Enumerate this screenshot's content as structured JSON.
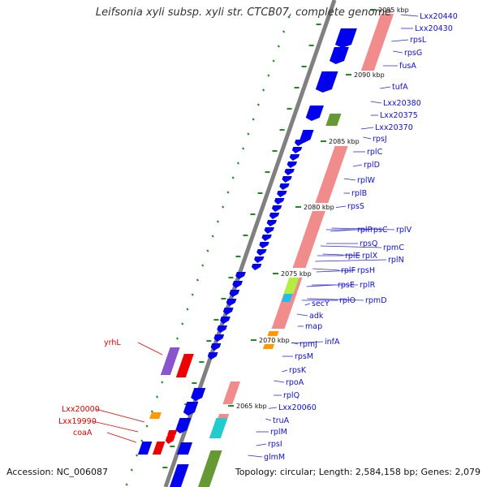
{
  "title": "Leifsonia xyli subsp. xyli str. CTCB07, complete genome",
  "accession": "Accession: NC_006087",
  "topology": "Topology: circular; Length: 2,584,158 bp; Genes: 2,079",
  "colors": {
    "backbone": "#7f7f7f",
    "cds_forward": "#0000ee",
    "cds_reverse_label": "#dd0000",
    "rrna_gene": "#f08c8c",
    "gc_tick": "#1f8c1f"
  },
  "ruler": [
    "2065 kbp",
    "2070 kbp",
    "2075 kbp",
    "2080 kbp",
    "2085 kbp",
    "2090 kbp",
    "2095 kbp"
  ],
  "right_labels": [
    "Lxx20440",
    "Lxx20430",
    "rpsL",
    "rpsG",
    "fusA",
    "tufA",
    "Lxx20380",
    "Lxx20375",
    "Lxx20370",
    "rpsJ",
    "rplC",
    "rplD",
    "rplW",
    "rplB",
    "rpsS",
    "rplV",
    "rpsC",
    "rplP",
    "rpmC",
    "rpsQ",
    "rplN",
    "rplX",
    "rplE",
    "rpsH",
    "rplF",
    "rplR",
    "rpsE",
    "rpmD",
    "rplO",
    "secY",
    "adk",
    "map",
    "infA",
    "rpmJ",
    "rpsM",
    "rpsK",
    "rpoA",
    "rplQ",
    "Lxx20060",
    "truA",
    "rplM",
    "rpsI",
    "glmM"
  ],
  "left_labels": [
    "yrhL",
    "Lxx20000",
    "Lxx19990",
    "coaA"
  ]
}
